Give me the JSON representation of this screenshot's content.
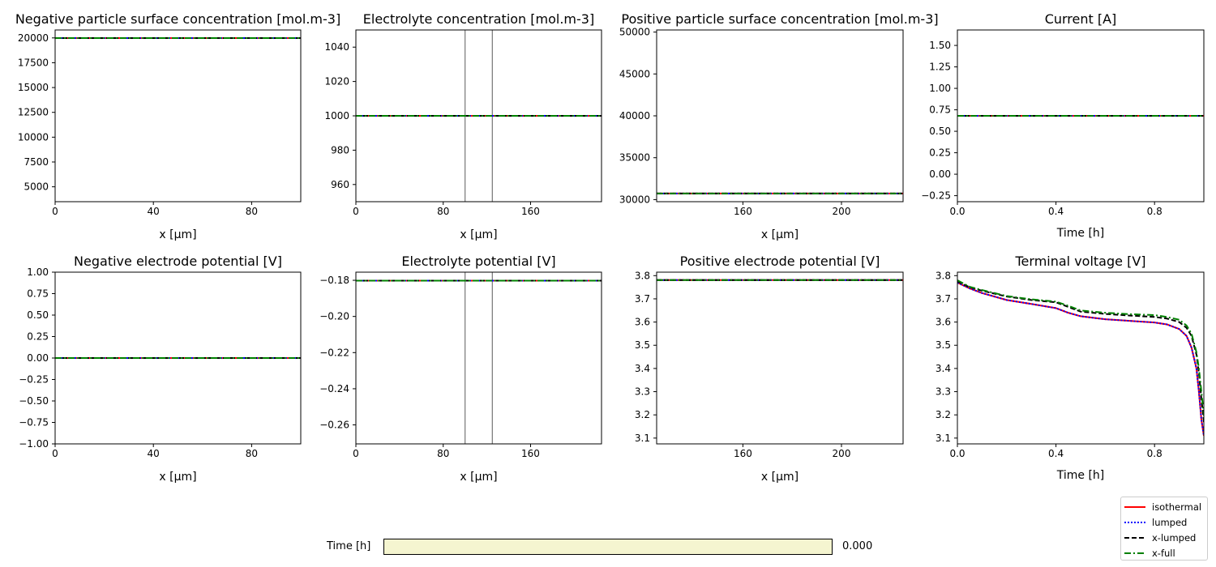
{
  "chart_data": [
    {
      "id": "c1",
      "type": "line",
      "title": "Negative particle surface concentration [mol.m-3]",
      "xlabel": "x [μm]",
      "ylabel": "",
      "xlim": [
        0,
        100
      ],
      "ylim": [
        3500,
        20800
      ],
      "xticks": [
        0,
        40,
        80
      ],
      "xtick_labels": [
        "0",
        "40",
        "80"
      ],
      "yticks": [
        5000,
        7500,
        10000,
        12500,
        15000,
        17500,
        20000
      ],
      "ytick_labels": [
        "5000",
        "7500",
        "10000",
        "12500",
        "15000",
        "17500",
        "20000"
      ],
      "vlines": [],
      "series": [
        {
          "name": "isothermal",
          "x": [
            0,
            100
          ],
          "y": [
            19986,
            19986
          ]
        },
        {
          "name": "lumped",
          "x": [
            0,
            100
          ],
          "y": [
            19986,
            19986
          ]
        },
        {
          "name": "x-lumped",
          "x": [
            0,
            100
          ],
          "y": [
            19986,
            19986
          ]
        },
        {
          "name": "x-full",
          "x": [
            0,
            100
          ],
          "y": [
            19986,
            19986
          ]
        }
      ]
    },
    {
      "id": "c2",
      "type": "line",
      "title": "Electrolyte concentration [mol.m-3]",
      "xlabel": "x [μm]",
      "ylabel": "",
      "xlim": [
        0,
        225
      ],
      "ylim": [
        950,
        1050
      ],
      "xticks": [
        0,
        80,
        160
      ],
      "xtick_labels": [
        "0",
        "80",
        "160"
      ],
      "yticks": [
        960,
        980,
        1000,
        1020,
        1040
      ],
      "ytick_labels": [
        "960",
        "980",
        "1000",
        "1020",
        "1040"
      ],
      "vlines": [
        100,
        125
      ],
      "series": [
        {
          "name": "isothermal",
          "x": [
            0,
            225
          ],
          "y": [
            1000,
            1000
          ]
        },
        {
          "name": "lumped",
          "x": [
            0,
            225
          ],
          "y": [
            1000,
            1000
          ]
        },
        {
          "name": "x-lumped",
          "x": [
            0,
            225
          ],
          "y": [
            1000,
            1000
          ]
        },
        {
          "name": "x-full",
          "x": [
            0,
            225
          ],
          "y": [
            1000,
            1000
          ]
        }
      ]
    },
    {
      "id": "c3",
      "type": "line",
      "title": "Positive particle surface concentration [mol.m-3]",
      "xlabel": "x [μm]",
      "ylabel": "",
      "xlim": [
        125,
        225
      ],
      "ylim": [
        29750,
        50250
      ],
      "xticks": [
        160,
        200
      ],
      "xtick_labels": [
        "160",
        "200"
      ],
      "yticks": [
        30000,
        35000,
        40000,
        45000,
        50000
      ],
      "ytick_labels": [
        "30000",
        "35000",
        "40000",
        "45000",
        "50000"
      ],
      "vlines": [],
      "series": [
        {
          "name": "isothermal",
          "x": [
            125,
            225
          ],
          "y": [
            30730,
            30730
          ]
        },
        {
          "name": "lumped",
          "x": [
            125,
            225
          ],
          "y": [
            30730,
            30730
          ]
        },
        {
          "name": "x-lumped",
          "x": [
            125,
            225
          ],
          "y": [
            30730,
            30730
          ]
        },
        {
          "name": "x-full",
          "x": [
            125,
            225
          ],
          "y": [
            30730,
            30730
          ]
        }
      ]
    },
    {
      "id": "c4",
      "type": "line",
      "title": "Current [A]",
      "xlabel": "Time [h]",
      "ylabel": "",
      "xlim": [
        0,
        1.0
      ],
      "ylim": [
        -0.32,
        1.68
      ],
      "xticks": [
        0,
        0.4,
        0.8
      ],
      "xtick_labels": [
        "0.0",
        "0.4",
        "0.8"
      ],
      "yticks": [
        -0.25,
        0,
        0.25,
        0.5,
        0.75,
        1.0,
        1.25,
        1.5
      ],
      "ytick_labels": [
        "−0.25",
        "0.00",
        "0.25",
        "0.50",
        "0.75",
        "1.00",
        "1.25",
        "1.50"
      ],
      "vlines": [],
      "series": [
        {
          "name": "isothermal",
          "x": [
            0,
            1.0
          ],
          "y": [
            0.68,
            0.68
          ]
        },
        {
          "name": "lumped",
          "x": [
            0,
            1.0
          ],
          "y": [
            0.68,
            0.68
          ]
        },
        {
          "name": "x-lumped",
          "x": [
            0,
            1.0
          ],
          "y": [
            0.68,
            0.68
          ]
        },
        {
          "name": "x-full",
          "x": [
            0,
            1.0
          ],
          "y": [
            0.68,
            0.68
          ]
        }
      ]
    },
    {
      "id": "c5",
      "type": "line",
      "title": "Negative electrode potential [V]",
      "xlabel": "x [μm]",
      "ylabel": "",
      "xlim": [
        0,
        100
      ],
      "ylim": [
        -1.0,
        1.0
      ],
      "xticks": [
        0,
        40,
        80
      ],
      "xtick_labels": [
        "0",
        "40",
        "80"
      ],
      "yticks": [
        -1.0,
        -0.75,
        -0.5,
        -0.25,
        0,
        0.25,
        0.5,
        0.75,
        1.0
      ],
      "ytick_labels": [
        "−1.00",
        "−0.75",
        "−0.50",
        "−0.25",
        "0.00",
        "0.25",
        "0.50",
        "0.75",
        "1.00"
      ],
      "vlines": [],
      "series": [
        {
          "name": "isothermal",
          "x": [
            0,
            100
          ],
          "y": [
            0,
            0
          ]
        },
        {
          "name": "lumped",
          "x": [
            0,
            100
          ],
          "y": [
            0,
            0
          ]
        },
        {
          "name": "x-lumped",
          "x": [
            0,
            100
          ],
          "y": [
            0,
            0
          ]
        },
        {
          "name": "x-full",
          "x": [
            0,
            100
          ],
          "y": [
            0,
            0
          ]
        }
      ]
    },
    {
      "id": "c6",
      "type": "line",
      "title": "Electrolyte potential [V]",
      "xlabel": "x [μm]",
      "ylabel": "",
      "xlim": [
        0,
        225
      ],
      "ylim": [
        -0.2705,
        -0.1755
      ],
      "xticks": [
        0,
        80,
        160
      ],
      "xtick_labels": [
        "0",
        "80",
        "160"
      ],
      "yticks": [
        -0.26,
        -0.24,
        -0.22,
        -0.2,
        -0.18
      ],
      "ytick_labels": [
        "−0.26",
        "−0.24",
        "−0.22",
        "−0.20",
        "−0.18"
      ],
      "vlines": [
        100,
        125
      ],
      "series": [
        {
          "name": "isothermal",
          "x": [
            0,
            225
          ],
          "y": [
            -0.1802,
            -0.1802
          ]
        },
        {
          "name": "lumped",
          "x": [
            0,
            225
          ],
          "y": [
            -0.1802,
            -0.1802
          ]
        },
        {
          "name": "x-lumped",
          "x": [
            0,
            225
          ],
          "y": [
            -0.1802,
            -0.1802
          ]
        },
        {
          "name": "x-full",
          "x": [
            0,
            225
          ],
          "y": [
            -0.1802,
            -0.1802
          ]
        }
      ]
    },
    {
      "id": "c7",
      "type": "line",
      "title": "Positive electrode potential [V]",
      "xlabel": "x [μm]",
      "ylabel": "",
      "xlim": [
        125,
        225
      ],
      "ylim": [
        3.075,
        3.815
      ],
      "xticks": [
        160,
        200
      ],
      "xtick_labels": [
        "160",
        "200"
      ],
      "yticks": [
        3.1,
        3.2,
        3.3,
        3.4,
        3.5,
        3.6,
        3.7,
        3.8
      ],
      "ytick_labels": [
        "3.1",
        "3.2",
        "3.3",
        "3.4",
        "3.5",
        "3.6",
        "3.7",
        "3.8"
      ],
      "vlines": [],
      "series": [
        {
          "name": "isothermal",
          "x": [
            125,
            225
          ],
          "y": [
            3.781,
            3.781
          ]
        },
        {
          "name": "lumped",
          "x": [
            125,
            225
          ],
          "y": [
            3.781,
            3.781
          ]
        },
        {
          "name": "x-lumped",
          "x": [
            125,
            225
          ],
          "y": [
            3.781,
            3.781
          ]
        },
        {
          "name": "x-full",
          "x": [
            125,
            225
          ],
          "y": [
            3.781,
            3.781
          ]
        }
      ]
    },
    {
      "id": "c8",
      "type": "line",
      "title": "Terminal voltage [V]",
      "xlabel": "Time [h]",
      "ylabel": "",
      "xlim": [
        0,
        1.0
      ],
      "ylim": [
        3.075,
        3.815
      ],
      "xticks": [
        0,
        0.4,
        0.8
      ],
      "xtick_labels": [
        "0.0",
        "0.4",
        "0.8"
      ],
      "yticks": [
        3.1,
        3.2,
        3.3,
        3.4,
        3.5,
        3.6,
        3.7,
        3.8
      ],
      "ytick_labels": [
        "3.1",
        "3.2",
        "3.3",
        "3.4",
        "3.5",
        "3.6",
        "3.7",
        "3.8"
      ],
      "vlines": [],
      "series": [
        {
          "name": "isothermal",
          "x": [
            0,
            0.05,
            0.1,
            0.2,
            0.3,
            0.4,
            0.45,
            0.5,
            0.6,
            0.7,
            0.8,
            0.85,
            0.9,
            0.93,
            0.95,
            0.97,
            0.98,
            0.99,
            1.0
          ],
          "y": [
            3.77,
            3.745,
            3.725,
            3.695,
            3.678,
            3.66,
            3.64,
            3.625,
            3.612,
            3.605,
            3.598,
            3.59,
            3.57,
            3.54,
            3.49,
            3.4,
            3.3,
            3.18,
            3.11
          ]
        },
        {
          "name": "lumped",
          "x": [
            0,
            0.05,
            0.1,
            0.2,
            0.3,
            0.4,
            0.45,
            0.5,
            0.6,
            0.7,
            0.8,
            0.85,
            0.9,
            0.93,
            0.95,
            0.97,
            0.98,
            0.99,
            1.0
          ],
          "y": [
            3.77,
            3.745,
            3.725,
            3.695,
            3.678,
            3.66,
            3.64,
            3.625,
            3.612,
            3.605,
            3.598,
            3.59,
            3.57,
            3.54,
            3.49,
            3.4,
            3.3,
            3.18,
            3.11
          ]
        },
        {
          "name": "x-lumped",
          "x": [
            0,
            0.05,
            0.1,
            0.2,
            0.3,
            0.4,
            0.45,
            0.5,
            0.6,
            0.7,
            0.8,
            0.85,
            0.9,
            0.93,
            0.95,
            0.97,
            0.98,
            0.99,
            1.0,
            1.01
          ],
          "y": [
            3.775,
            3.75,
            3.735,
            3.71,
            3.695,
            3.685,
            3.665,
            3.645,
            3.635,
            3.628,
            3.622,
            3.615,
            3.6,
            3.575,
            3.54,
            3.46,
            3.38,
            3.27,
            3.17,
            3.12
          ]
        },
        {
          "name": "x-full",
          "x": [
            0,
            0.05,
            0.1,
            0.2,
            0.3,
            0.4,
            0.45,
            0.5,
            0.6,
            0.7,
            0.8,
            0.85,
            0.9,
            0.93,
            0.95,
            0.97,
            0.98,
            0.99,
            1.0,
            1.01
          ],
          "y": [
            3.78,
            3.752,
            3.738,
            3.712,
            3.698,
            3.688,
            3.67,
            3.65,
            3.64,
            3.634,
            3.63,
            3.622,
            3.61,
            3.585,
            3.55,
            3.47,
            3.4,
            3.3,
            3.2,
            3.16
          ]
        }
      ]
    }
  ],
  "series_styles": {
    "isothermal": {
      "color": "#ff0000",
      "dash": ""
    },
    "lumped": {
      "color": "#0000ff",
      "dash": "2,2"
    },
    "x-lumped": {
      "color": "#000000",
      "dash": "6,3"
    },
    "x-full": {
      "color": "#008000",
      "dash": "8,3,2,3"
    }
  },
  "legend": {
    "placement": "bottom-right",
    "items": [
      {
        "label": "isothermal",
        "series": "isothermal"
      },
      {
        "label": "lumped",
        "series": "lumped"
      },
      {
        "label": "x-lumped",
        "series": "x-lumped"
      },
      {
        "label": "x-full",
        "series": "x-full"
      }
    ]
  },
  "slider": {
    "label": "Time [h]",
    "value": "0.000",
    "fraction": 1.0
  }
}
